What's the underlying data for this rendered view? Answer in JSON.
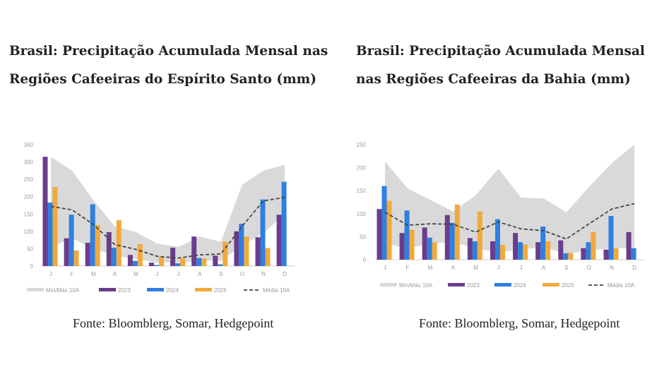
{
  "colors": {
    "minmax": "#d9d9d9",
    "y2023": "#6a3d8c",
    "y2024": "#2f7fe0",
    "y2025": "#f2a93b",
    "media": "#444444"
  },
  "chart_data": [
    {
      "type": "bar",
      "title": "Brasil: Precipitação Acumulada Mensal nas Regiões Cafeeiras do Espírito Santo (mm)",
      "source": "Fonte: Bloomblerg, Somar, Hedgepoint",
      "categories": [
        "J",
        "F",
        "M",
        "A",
        "M",
        "J",
        "J",
        "A",
        "S",
        "O",
        "N",
        "D"
      ],
      "ylim": [
        0,
        350
      ],
      "yticks": [
        "0",
        "50",
        "100",
        "150",
        "200",
        "250",
        "300",
        "350"
      ],
      "legend": [
        "Mín/Máx 10A",
        "2023",
        "2024",
        "2025",
        "Média 10A"
      ],
      "legend_position": "bottom",
      "band": {
        "name": "Mín/Máx 10A",
        "min": [
          55,
          80,
          50,
          30,
          20,
          10,
          10,
          15,
          15,
          60,
          95,
          150
        ],
        "max": [
          315,
          275,
          190,
          115,
          98,
          65,
          55,
          85,
          70,
          235,
          275,
          292
        ]
      },
      "series": [
        {
          "name": "2023",
          "values": [
            315,
            80,
            67,
            98,
            32,
            10,
            53,
            85,
            30,
            100,
            83,
            148
          ]
        },
        {
          "name": "2024",
          "values": [
            183,
            148,
            178,
            53,
            15,
            3,
            8,
            23,
            5,
            122,
            192,
            243
          ]
        },
        {
          "name": "2025",
          "values": [
            228,
            45,
            118,
            132,
            63,
            27,
            22,
            22,
            70,
            85,
            52,
            null
          ]
        }
      ],
      "media": {
        "name": "Média 10A",
        "values": [
          172,
          162,
          120,
          62,
          48,
          28,
          23,
          32,
          35,
          115,
          188,
          198
        ]
      }
    },
    {
      "type": "bar",
      "title": "Brasil: Precipitação Acumulada Mensal nas Regiões Cafeeiras da Bahia (mm)",
      "source": "Fonte: Bloomblerg, Somar, Hedgepoint",
      "categories": [
        "J",
        "F",
        "M",
        "A",
        "M",
        "J",
        "J",
        "A",
        "S",
        "O",
        "N",
        "D"
      ],
      "ylim": [
        0,
        250
      ],
      "yticks": [
        "0",
        "50",
        "100",
        "150",
        "200",
        "250"
      ],
      "legend": [
        "Mín/Máx 10A",
        "2023",
        "2024",
        "2025",
        "Média 10A"
      ],
      "legend_position": "bottom",
      "band": {
        "name": "Mín/Máx 10A",
        "min": [
          35,
          25,
          35,
          38,
          25,
          15,
          22,
          27,
          12,
          20,
          25,
          25
        ],
        "max": [
          213,
          155,
          130,
          105,
          140,
          198,
          135,
          133,
          103,
          158,
          210,
          250
        ]
      },
      "series": [
        {
          "name": "2023",
          "values": [
            110,
            58,
            70,
            97,
            47,
            40,
            58,
            38,
            42,
            25,
            22,
            60
          ]
        },
        {
          "name": "2024",
          "values": [
            160,
            107,
            48,
            80,
            40,
            88,
            38,
            72,
            14,
            38,
            95,
            25
          ]
        },
        {
          "name": "2025",
          "values": [
            128,
            65,
            38,
            120,
            105,
            32,
            33,
            40,
            15,
            60,
            25,
            null
          ]
        }
      ],
      "media": {
        "name": "Média 10A",
        "values": [
          103,
          75,
          78,
          77,
          60,
          82,
          67,
          63,
          45,
          78,
          110,
          122
        ]
      }
    }
  ]
}
